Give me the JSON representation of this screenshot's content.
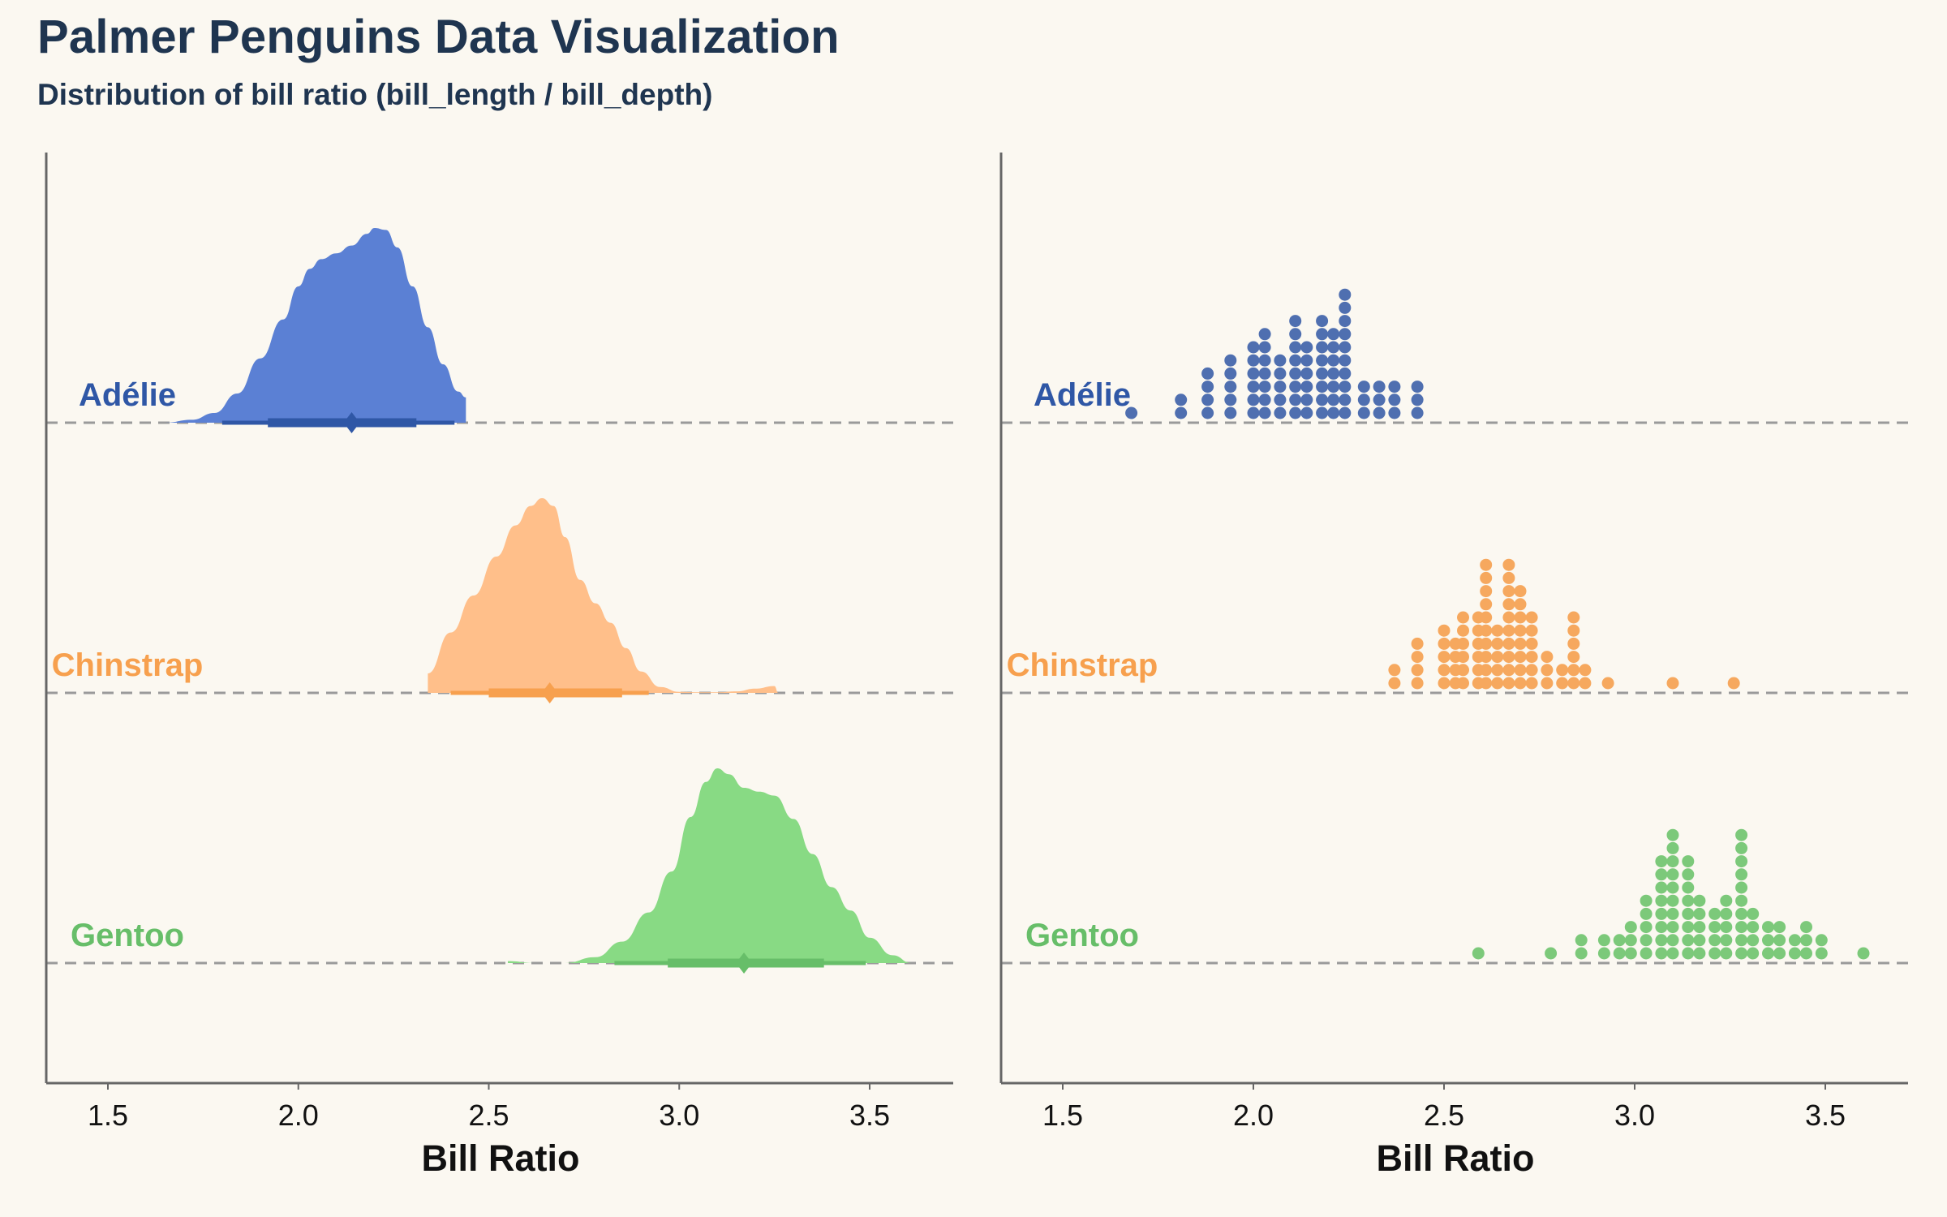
{
  "title": "Palmer Penguins Data Visualization",
  "subtitle": "Distribution of bill ratio (bill_length / bill_depth)",
  "chart_data": [
    {
      "type": "area",
      "panel": "left",
      "subtype": "half-eye density with interval",
      "xlabel": "Bill Ratio",
      "xticks": [
        "1.5",
        "2.0",
        "2.5",
        "3.0",
        "3.5"
      ],
      "xlim": [
        1.35,
        3.72
      ],
      "grid": false,
      "legend": "none",
      "series": [
        {
          "name": "Adélie",
          "color": "#5b80d4",
          "interval_color": "#2f57a6",
          "label_color": "#2f57a6",
          "density_x": [
            1.65,
            1.72,
            1.78,
            1.84,
            1.9,
            1.96,
            2.0,
            2.03,
            2.06,
            2.1,
            2.14,
            2.18,
            2.2,
            2.23,
            2.26,
            2.3,
            2.34,
            2.38,
            2.42,
            2.44
          ],
          "density_y": [
            0.0,
            0.015,
            0.05,
            0.15,
            0.33,
            0.53,
            0.7,
            0.79,
            0.84,
            0.87,
            0.91,
            0.97,
            1.0,
            0.99,
            0.9,
            0.7,
            0.49,
            0.3,
            0.16,
            0.13
          ],
          "median": 2.14,
          "interval_66": [
            1.92,
            2.31
          ],
          "interval_95": [
            1.8,
            2.41
          ]
        },
        {
          "name": "Chinstrap",
          "color": "#ffbf8a",
          "interval_color": "#f7a04e",
          "label_color": "#f7a04e",
          "density_x": [
            2.34,
            2.4,
            2.46,
            2.52,
            2.57,
            2.61,
            2.64,
            2.67,
            2.7,
            2.74,
            2.78,
            2.82,
            2.86,
            2.9,
            2.95,
            3.0,
            3.05,
            3.1,
            3.15,
            3.2,
            3.25,
            3.26
          ],
          "density_y": [
            0.1,
            0.31,
            0.5,
            0.7,
            0.86,
            0.96,
            1.0,
            0.96,
            0.8,
            0.58,
            0.46,
            0.36,
            0.23,
            0.11,
            0.03,
            0.005,
            0.003,
            0.003,
            0.008,
            0.022,
            0.035,
            0.0
          ],
          "median": 2.66,
          "interval_66": [
            2.5,
            2.85
          ],
          "interval_95": [
            2.4,
            2.92
          ]
        },
        {
          "name": "Gentoo",
          "color": "#88da84",
          "interval_color": "#67be69",
          "label_color": "#67be69",
          "density_x": [
            2.55,
            2.62,
            2.7,
            2.78,
            2.85,
            2.92,
            2.98,
            3.03,
            3.07,
            3.1,
            3.13,
            3.17,
            3.21,
            3.25,
            3.3,
            3.35,
            3.4,
            3.45,
            3.5,
            3.56,
            3.61
          ],
          "density_y": [
            0.01,
            0.0,
            0.0,
            0.03,
            0.11,
            0.26,
            0.47,
            0.75,
            0.93,
            1.0,
            0.97,
            0.9,
            0.88,
            0.86,
            0.74,
            0.56,
            0.39,
            0.27,
            0.13,
            0.04,
            0.0
          ],
          "median": 3.17,
          "interval_66": [
            2.97,
            3.38
          ],
          "interval_95": [
            2.83,
            3.49
          ]
        }
      ]
    },
    {
      "type": "scatter",
      "panel": "right",
      "subtype": "dot histogram",
      "xlabel": "Bill Ratio",
      "xticks": [
        "1.5",
        "2.0",
        "2.5",
        "3.0",
        "3.5"
      ],
      "xlim": [
        1.35,
        3.72
      ],
      "grid": false,
      "legend": "none",
      "series": [
        {
          "name": "Adélie",
          "color": "#4f6fb0",
          "label_color": "#2f57a6",
          "bins": [
            {
              "x": 1.68,
              "count": 1
            },
            {
              "x": 1.81,
              "count": 2
            },
            {
              "x": 1.88,
              "count": 4
            },
            {
              "x": 1.94,
              "count": 5
            },
            {
              "x": 2.0,
              "count": 6
            },
            {
              "x": 2.03,
              "count": 7
            },
            {
              "x": 2.07,
              "count": 5
            },
            {
              "x": 2.11,
              "count": 8
            },
            {
              "x": 2.14,
              "count": 6
            },
            {
              "x": 2.18,
              "count": 8
            },
            {
              "x": 2.21,
              "count": 7
            },
            {
              "x": 2.24,
              "count": 10
            },
            {
              "x": 2.29,
              "count": 3
            },
            {
              "x": 2.33,
              "count": 3
            },
            {
              "x": 2.37,
              "count": 3
            },
            {
              "x": 2.43,
              "count": 3
            }
          ]
        },
        {
          "name": "Chinstrap",
          "color": "#f6a85e",
          "label_color": "#f7a04e",
          "bins": [
            {
              "x": 2.37,
              "count": 2
            },
            {
              "x": 2.43,
              "count": 4
            },
            {
              "x": 2.5,
              "count": 5
            },
            {
              "x": 2.53,
              "count": 4
            },
            {
              "x": 2.55,
              "count": 6
            },
            {
              "x": 2.59,
              "count": 6
            },
            {
              "x": 2.61,
              "count": 10
            },
            {
              "x": 2.64,
              "count": 5
            },
            {
              "x": 2.67,
              "count": 10
            },
            {
              "x": 2.7,
              "count": 8
            },
            {
              "x": 2.73,
              "count": 6
            },
            {
              "x": 2.77,
              "count": 3
            },
            {
              "x": 2.81,
              "count": 2
            },
            {
              "x": 2.84,
              "count": 6
            },
            {
              "x": 2.87,
              "count": 2
            },
            {
              "x": 2.93,
              "count": 1
            },
            {
              "x": 3.1,
              "count": 1
            },
            {
              "x": 3.26,
              "count": 1
            }
          ]
        },
        {
          "name": "Gentoo",
          "color": "#7cc97a",
          "label_color": "#67be69",
          "bins": [
            {
              "x": 2.59,
              "count": 1
            },
            {
              "x": 2.78,
              "count": 1
            },
            {
              "x": 2.86,
              "count": 2
            },
            {
              "x": 2.92,
              "count": 2
            },
            {
              "x": 2.96,
              "count": 2
            },
            {
              "x": 2.99,
              "count": 3
            },
            {
              "x": 3.03,
              "count": 5
            },
            {
              "x": 3.07,
              "count": 8
            },
            {
              "x": 3.1,
              "count": 10
            },
            {
              "x": 3.14,
              "count": 8
            },
            {
              "x": 3.17,
              "count": 5
            },
            {
              "x": 3.21,
              "count": 4
            },
            {
              "x": 3.24,
              "count": 5
            },
            {
              "x": 3.28,
              "count": 10
            },
            {
              "x": 3.31,
              "count": 4
            },
            {
              "x": 3.35,
              "count": 3
            },
            {
              "x": 3.38,
              "count": 3
            },
            {
              "x": 3.42,
              "count": 2
            },
            {
              "x": 3.45,
              "count": 3
            },
            {
              "x": 3.49,
              "count": 2
            },
            {
              "x": 3.6,
              "count": 1
            }
          ]
        }
      ]
    }
  ]
}
